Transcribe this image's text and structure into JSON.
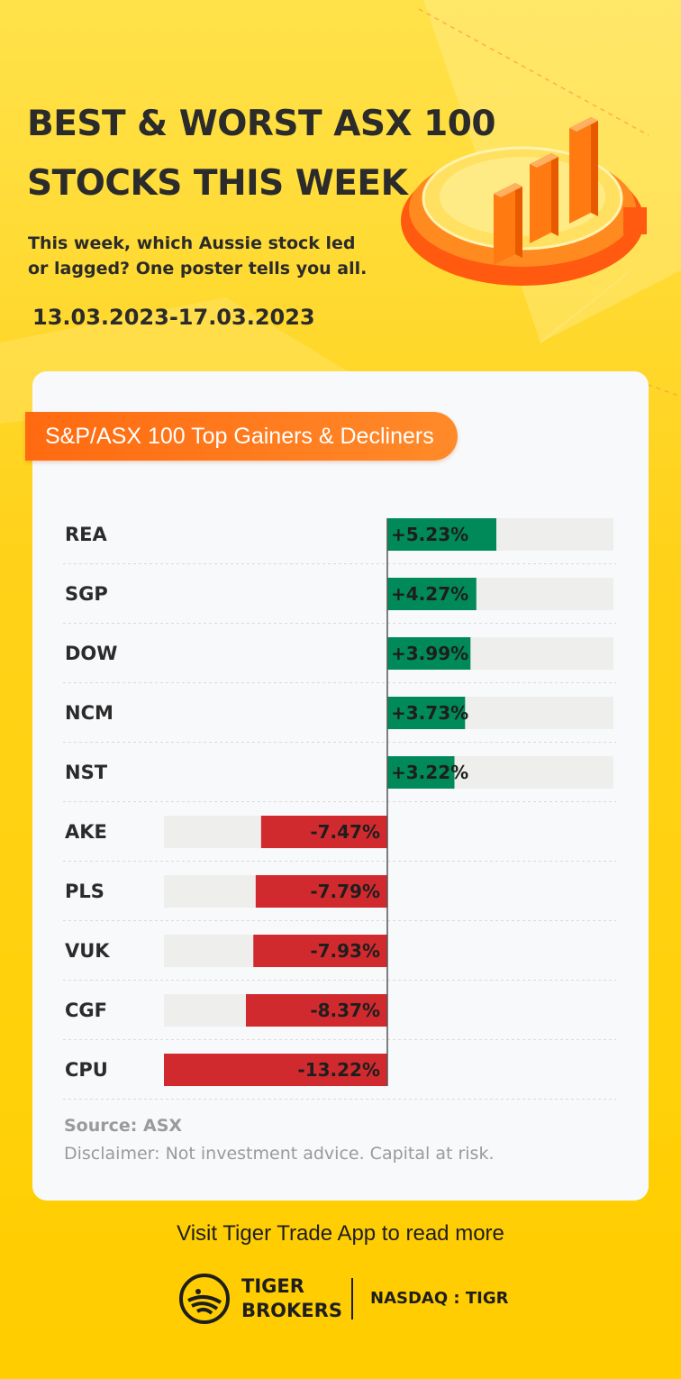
{
  "header": {
    "title_line1": "BEST & WORST ASX 100",
    "title_line2": "STOCKS THIS WEEK",
    "subtitle_line1": "This week, which Aussie stock led",
    "subtitle_line2": "or lagged? One poster tells you all.",
    "date_range": "13.03.2023-17.03.2023"
  },
  "card": {
    "banner": "S&P/ASX 100 Top Gainers & Decliners",
    "source": "Source: ASX",
    "disclaimer": "Disclaimer: Not investment advice. Capital at risk."
  },
  "chart_data": {
    "type": "bar",
    "orientation": "horizontal",
    "title": "S&P/ASX 100 Top Gainers & Decliners",
    "categories": [
      "REA",
      "SGP",
      "DOW",
      "NCM",
      "NST",
      "AKE",
      "PLS",
      "VUK",
      "CGF",
      "CPU"
    ],
    "values": [
      5.23,
      4.27,
      3.99,
      3.73,
      3.22,
      -7.47,
      -7.79,
      -7.93,
      -8.37,
      -13.22
    ],
    "labels": [
      "+5.23%",
      "+4.27%",
      "+3.99%",
      "+3.73%",
      "+3.22%",
      "-7.47%",
      "-7.79%",
      "-7.93%",
      "-8.37%",
      "-13.22%"
    ],
    "unit": "%",
    "colors": {
      "positive": "#008a5a",
      "negative": "#d12a2e",
      "track": "#eeeeec"
    }
  },
  "footer": {
    "visit_text": "Visit Tiger Trade App to read more",
    "brand_line1": "TIGER",
    "brand_line2": "BROKERS",
    "ticker": "NASDAQ : TIGR"
  },
  "icons": {
    "hero": "bar-chart-podium-icon",
    "logo": "tiger-logo-icon"
  }
}
